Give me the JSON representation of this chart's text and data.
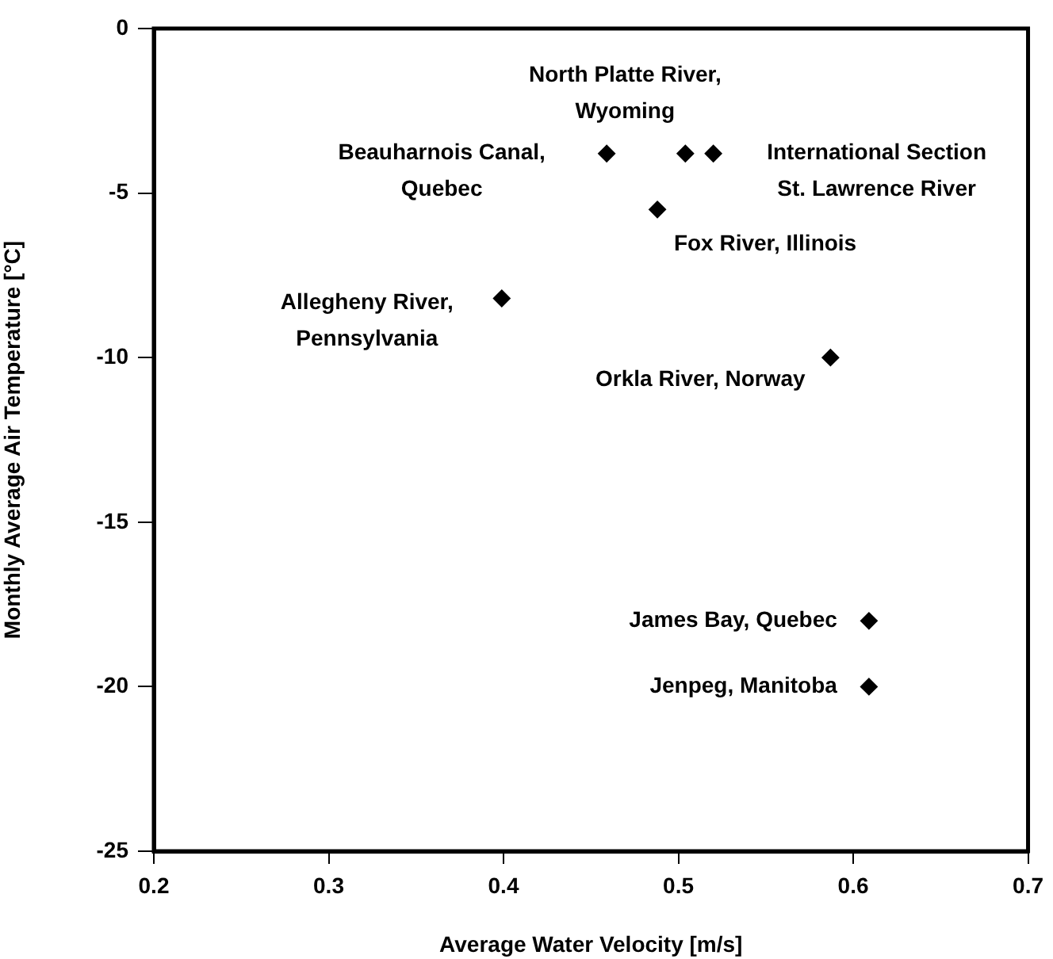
{
  "chart_data": {
    "type": "scatter",
    "xlabel": "Average Water Velocity [m/s]",
    "ylabel": "Monthly Average Air Temperature [°C]",
    "x": [
      0.459,
      0.504,
      0.52,
      0.488,
      0.399,
      0.587,
      0.609,
      0.609
    ],
    "series": [
      {
        "color": "#000000",
        "values": [
          -3.8,
          -3.8,
          -3.8,
          -5.5,
          -8.2,
          -10.0,
          -18.0,
          -20.0
        ]
      }
    ],
    "xlim": [
      0.2,
      0.7
    ],
    "xticks": [
      0.2,
      0.3,
      0.4,
      0.5,
      0.6,
      0.7
    ],
    "ylim": [
      -25,
      0
    ],
    "yticks": [
      -25,
      -20,
      -15,
      -10,
      -5,
      0
    ],
    "grid": false,
    "legend": false,
    "marker": "diamond",
    "annotations": [
      {
        "text": "Beauharnois Canal,\nQuebec",
        "x": 0.459,
        "y": -3.8
      },
      {
        "text": "North Platte River,\nWyoming",
        "x": 0.504,
        "y": -3.8
      },
      {
        "text": "International Section\nSt. Lawrence River",
        "x": 0.52,
        "y": -3.8
      },
      {
        "text": "Fox River, Illinois",
        "x": 0.488,
        "y": -5.5
      },
      {
        "text": "Allegheny River,\nPennsylvania",
        "x": 0.399,
        "y": -8.2
      },
      {
        "text": "Orkla River, Norway",
        "x": 0.587,
        "y": -10.0
      },
      {
        "text": "James Bay, Quebec",
        "x": 0.609,
        "y": -18.0
      },
      {
        "text": "Jenpeg, Manitoba",
        "x": 0.609,
        "y": -20.0
      }
    ]
  }
}
